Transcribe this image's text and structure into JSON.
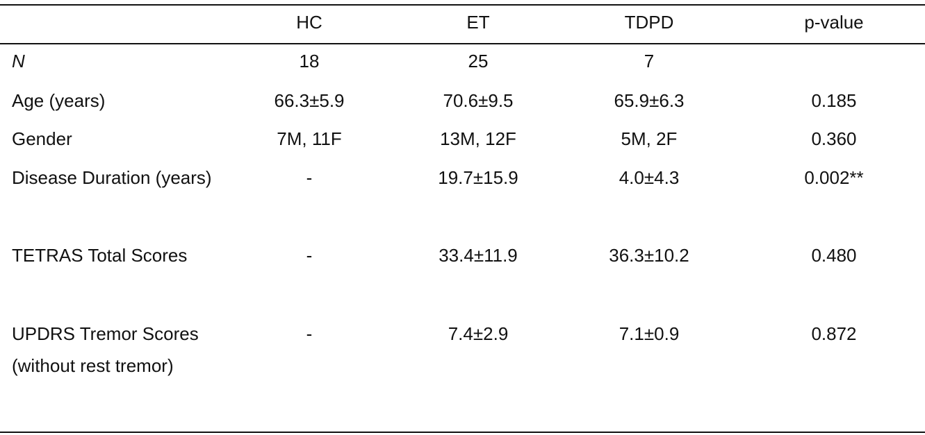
{
  "table": {
    "header": [
      "HC",
      "ET",
      "TDPD",
      "p-value"
    ],
    "rows": [
      {
        "label": "N",
        "cells": [
          "18",
          "25",
          "7"
        ]
      },
      {
        "label": "Age (years)",
        "cells": [
          "66.3±5.9",
          "70.6±9.5",
          "65.9±6.3",
          "0.185"
        ]
      },
      {
        "label": "Gender",
        "cells": [
          "7M, 11F",
          "13M, 12F",
          "5M, 2F",
          "0.360"
        ]
      },
      {
        "label": "Disease Duration (years)",
        "cells": [
          "-",
          "19.7±15.9",
          "4.0±4.3",
          "0.002**"
        ]
      },
      {
        "label": "TETRAS Total Scores",
        "cells": [
          "-",
          "33.4±11.9",
          "36.3±10.2",
          "0.480"
        ]
      },
      {
        "label": "UPDRS Tremor Scores (without rest tremor)",
        "cells": [
          "-",
          "7.4±2.9",
          "7.1±0.9",
          "0.872"
        ]
      }
    ]
  }
}
